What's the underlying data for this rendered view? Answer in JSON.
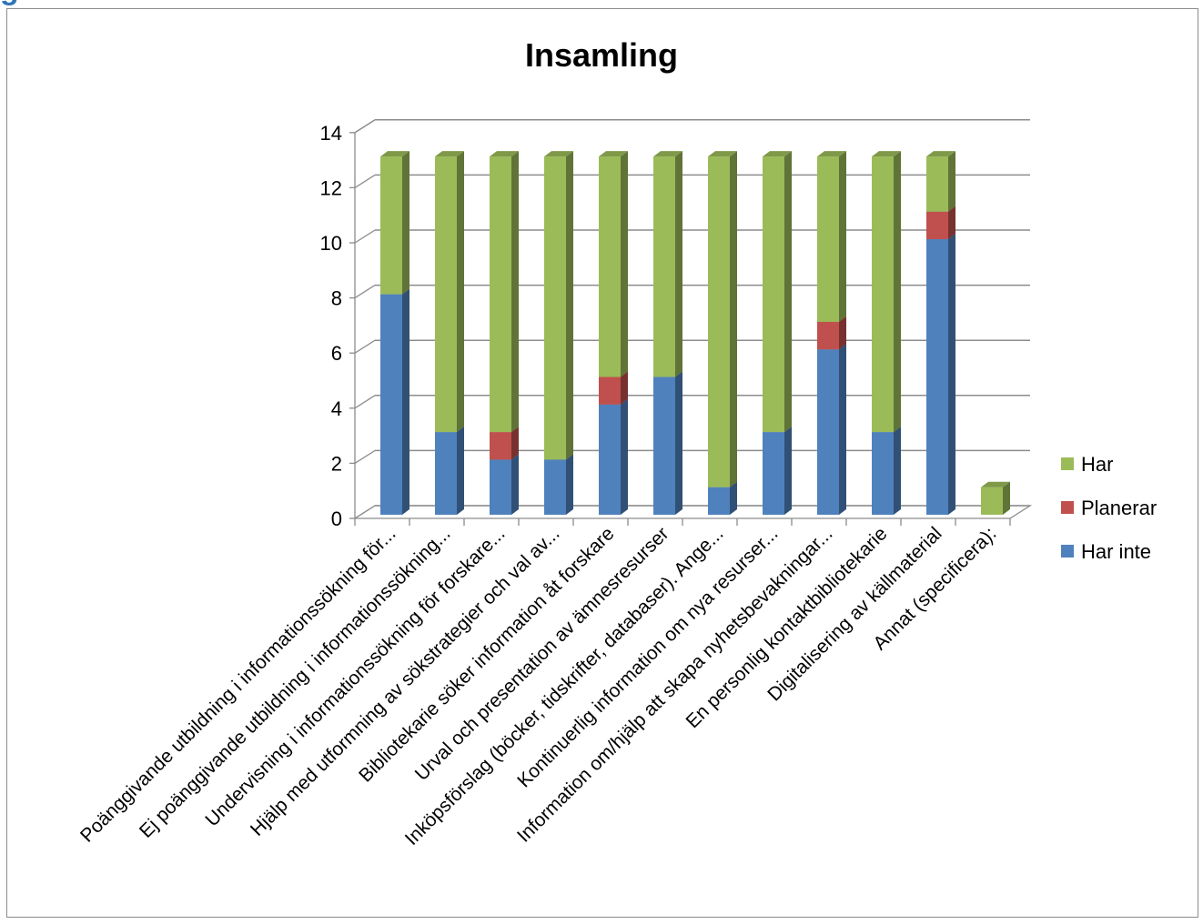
{
  "page_heading_fragment": "g",
  "chart_data": {
    "type": "bar",
    "stacked": true,
    "three_d": true,
    "title": "Insamling",
    "xlabel": "",
    "ylabel": "",
    "ylim": [
      0,
      14
    ],
    "yticks": [
      0,
      2,
      4,
      6,
      8,
      10,
      12,
      14
    ],
    "grid": true,
    "legend_position": "right",
    "categories": [
      "Poänggivande utbildning i informationssökning för...",
      "Ej poänggivande utbildning i informationssökning...",
      "Undervisning i informationssökning för forskare...",
      "Hjälp med utformning av sökstrategier och val av...",
      "Bibliotekarie söker information åt forskare",
      "Urval och presentation av ämnesresurser",
      "Inköpsförslag (böcker, tidskrifter, databaser). Ange...",
      "Kontinuerlig information om nya resurser...",
      "Information om/hjälp att skapa nyhetsbevakningar...",
      "En personlig kontaktbibliotekarie",
      "Digitalisering av källmaterial",
      "Annat (specificera):"
    ],
    "series": [
      {
        "name": "Har inte",
        "color": "#4f81bd",
        "values": [
          8,
          3,
          2,
          2,
          4,
          5,
          1,
          3,
          6,
          3,
          10,
          0
        ]
      },
      {
        "name": "Planerar",
        "color": "#c0504d",
        "values": [
          0,
          0,
          1,
          0,
          1,
          0,
          0,
          0,
          1,
          0,
          1,
          0
        ]
      },
      {
        "name": "Har",
        "color": "#9bbb59",
        "values": [
          5,
          10,
          10,
          11,
          8,
          8,
          12,
          10,
          6,
          10,
          2,
          1
        ]
      }
    ],
    "legend_order": [
      "Har",
      "Planerar",
      "Har inte"
    ]
  }
}
